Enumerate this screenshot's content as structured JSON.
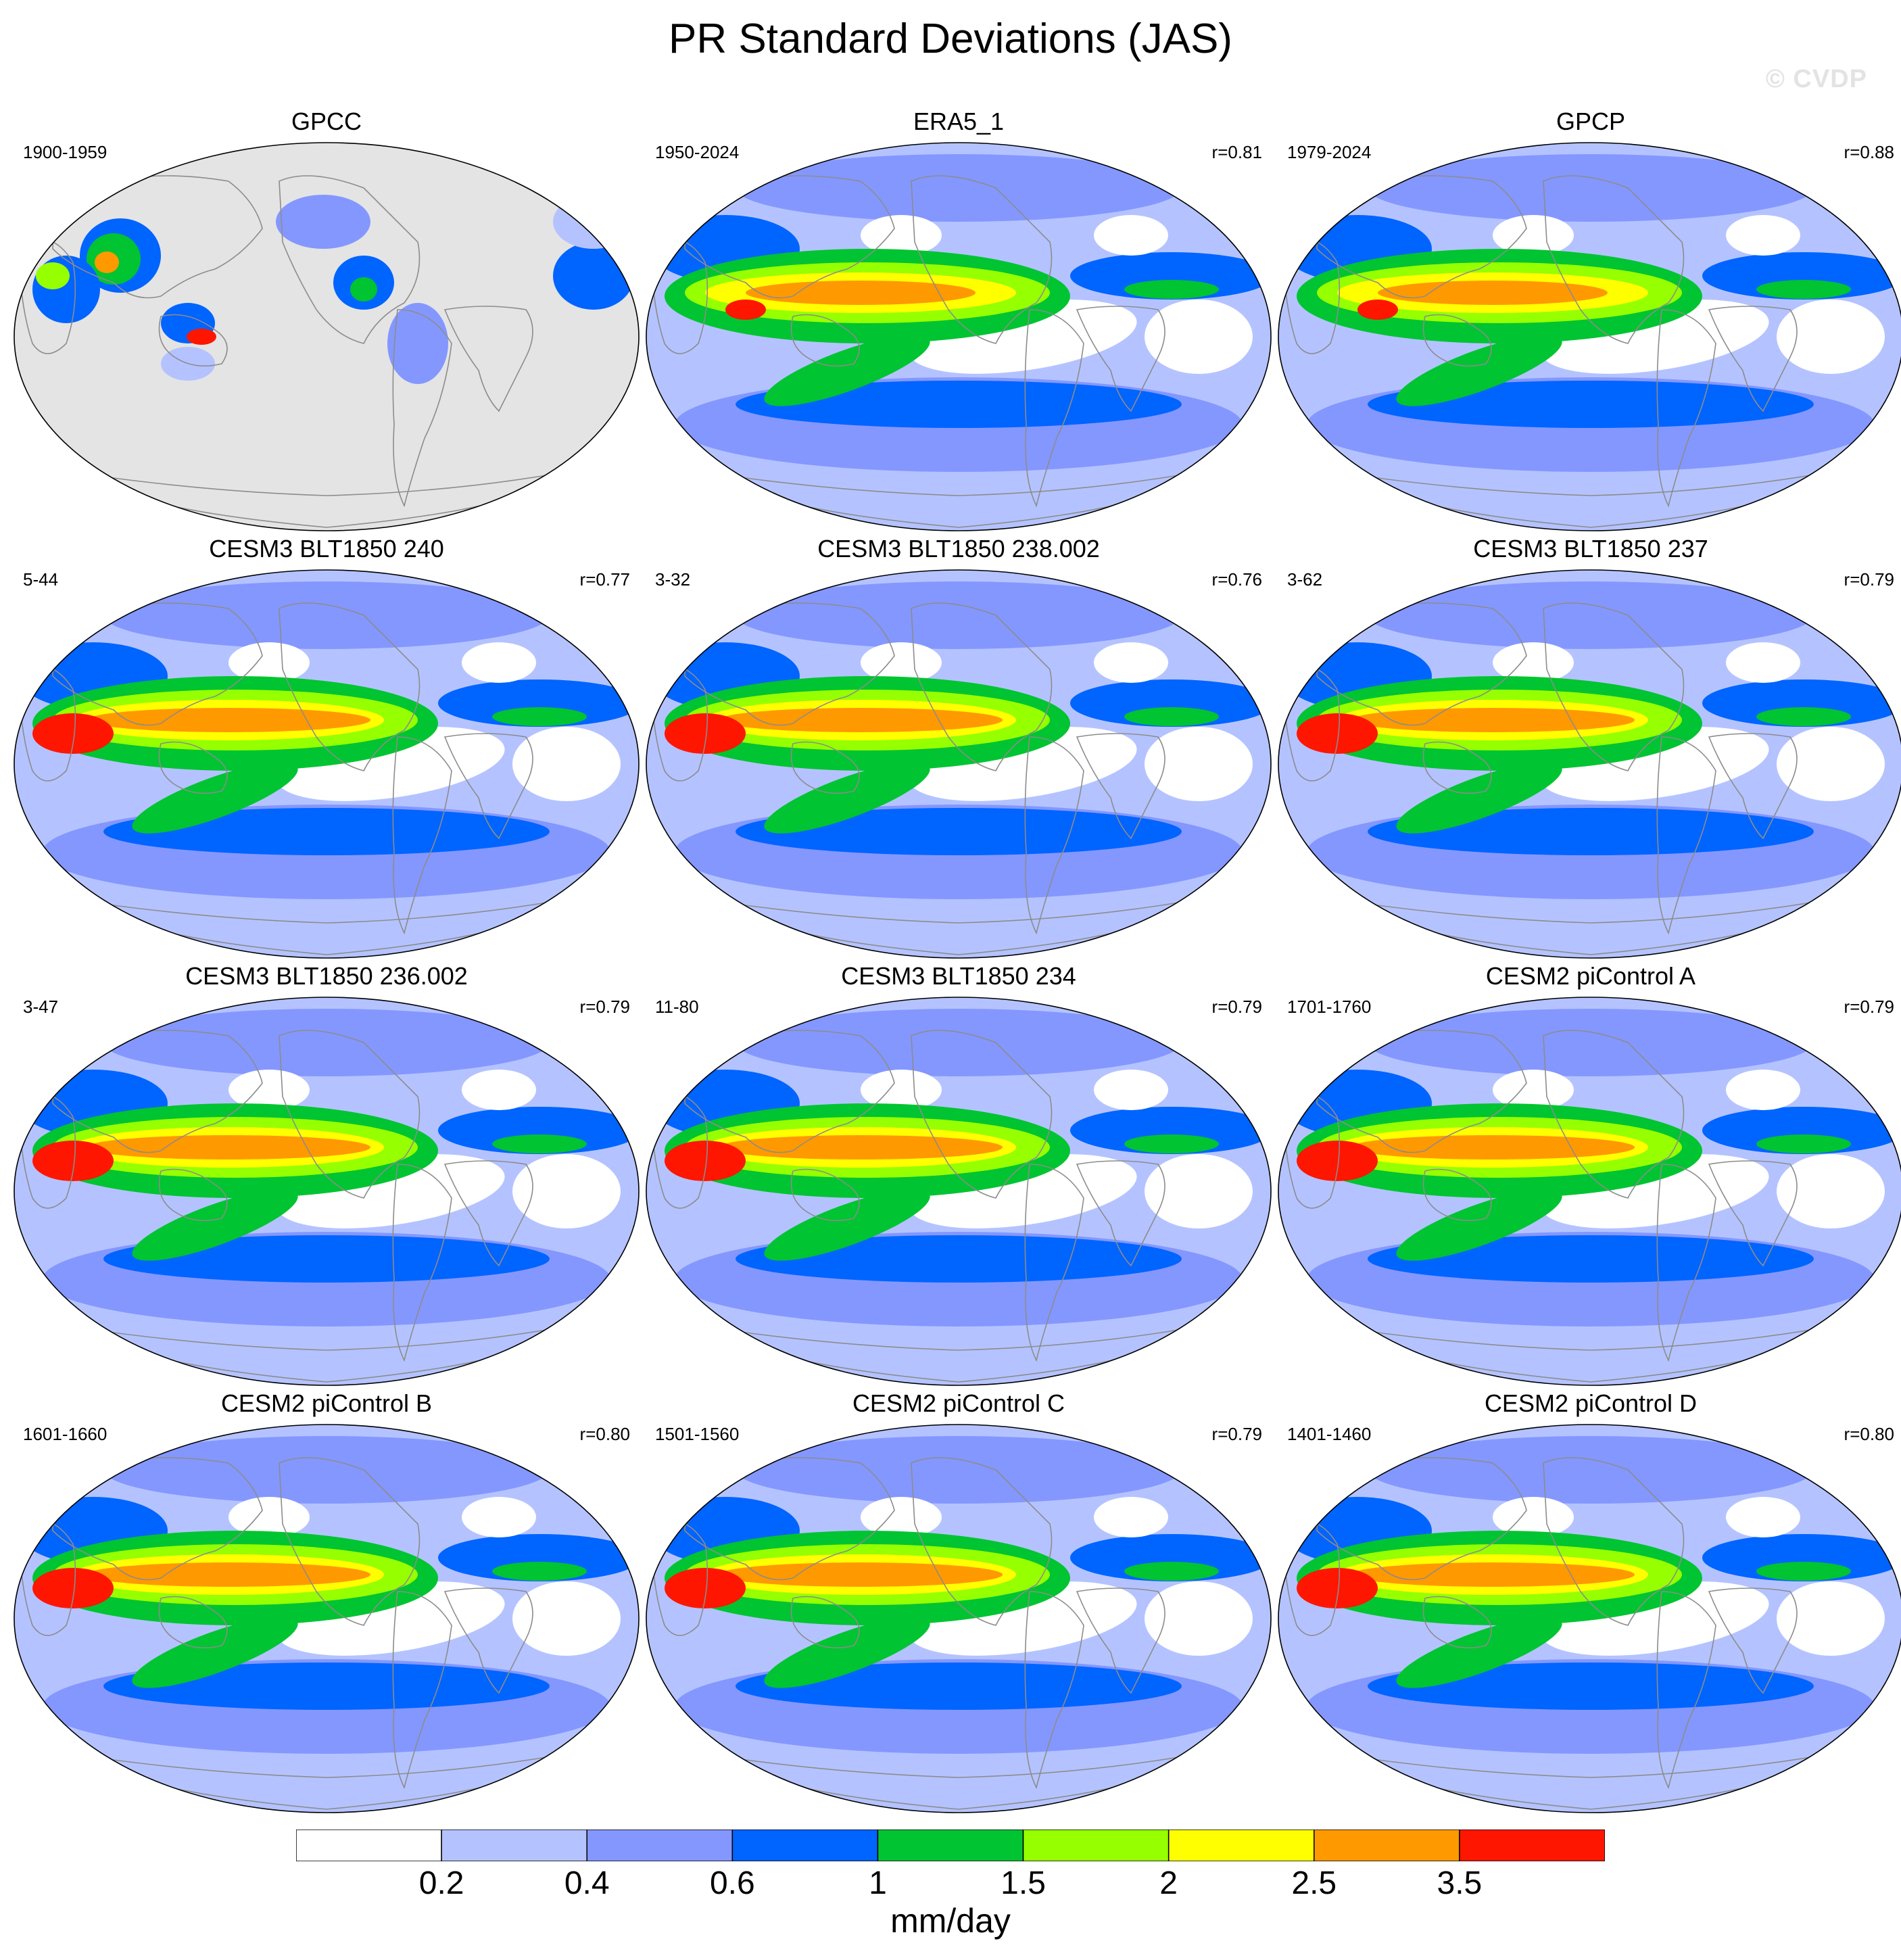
{
  "title": "PR Standard Deviations (JAS)",
  "watermark": "© CVDP",
  "panels": [
    {
      "title": "GPCC",
      "years": "1900-1959",
      "corr": "",
      "pattern": "obs_land"
    },
    {
      "title": "ERA5_1",
      "years": "1950-2024",
      "corr": "r=0.81",
      "pattern": "obs"
    },
    {
      "title": "GPCP",
      "years": "1979-2024",
      "corr": "r=0.88",
      "pattern": "obs"
    },
    {
      "title": "CESM3 BLT1850 240",
      "years": "5-44",
      "corr": "r=0.77",
      "pattern": "model"
    },
    {
      "title": "CESM3 BLT1850 238.002",
      "years": "3-32",
      "corr": "r=0.76",
      "pattern": "model"
    },
    {
      "title": "CESM3 BLT1850 237",
      "years": "3-62",
      "corr": "r=0.79",
      "pattern": "model"
    },
    {
      "title": "CESM3 BLT1850 236.002",
      "years": "3-47",
      "corr": "r=0.79",
      "pattern": "model"
    },
    {
      "title": "CESM3 BLT1850 234",
      "years": "11-80",
      "corr": "r=0.79",
      "pattern": "model"
    },
    {
      "title": "CESM2 piControl A",
      "years": "1701-1760",
      "corr": "r=0.79",
      "pattern": "model"
    },
    {
      "title": "CESM2 piControl B",
      "years": "1601-1660",
      "corr": "r=0.80",
      "pattern": "model"
    },
    {
      "title": "CESM2 piControl C",
      "years": "1501-1560",
      "corr": "r=0.79",
      "pattern": "model"
    },
    {
      "title": "CESM2 piControl D",
      "years": "1401-1460",
      "corr": "r=0.80",
      "pattern": "model"
    }
  ],
  "colorbar": {
    "colors": [
      "#ffffff",
      "#b4c3ff",
      "#8497ff",
      "#0064ff",
      "#00c431",
      "#96ff00",
      "#ffff00",
      "#ff9900",
      "#ff1600"
    ],
    "labels": [
      "0.2",
      "0.4",
      "0.6",
      "1",
      "1.5",
      "2",
      "2.5",
      "3.5"
    ],
    "units": "mm/day"
  },
  "missing_color": "#e4e4e4",
  "coast_color": "#8c8c8c"
}
